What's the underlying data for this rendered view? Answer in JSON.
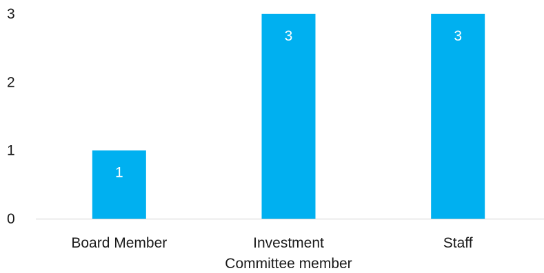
{
  "chart_data": {
    "type": "bar",
    "categories": [
      "Board Member",
      "Investment Committee member",
      "Staff"
    ],
    "category_label_lines": [
      [
        "Board Member"
      ],
      [
        "Investment",
        "Committee member"
      ],
      [
        "Staff"
      ]
    ],
    "values": [
      1,
      3,
      3
    ],
    "data_labels": [
      "1",
      "3",
      "3"
    ],
    "ylim": [
      0,
      3
    ],
    "yticks": [
      0,
      1,
      2,
      3
    ],
    "ytick_labels": [
      "0",
      "1",
      "2",
      "3"
    ],
    "grid": false,
    "legend": "none",
    "bar_color": "#00B0F0"
  }
}
